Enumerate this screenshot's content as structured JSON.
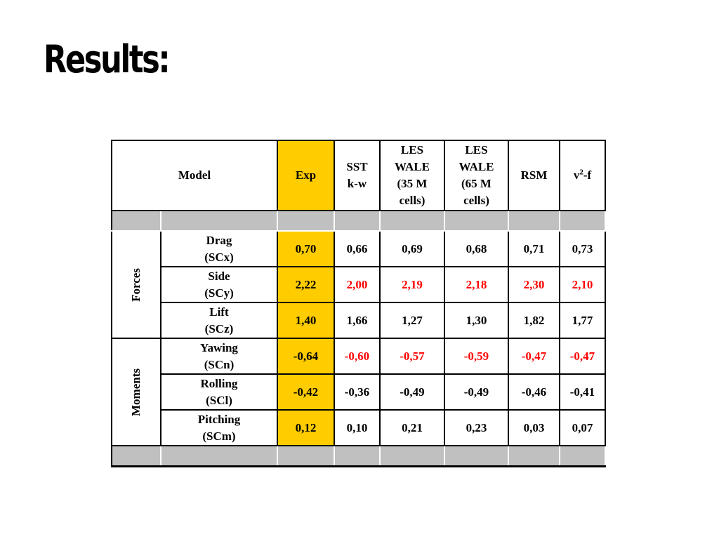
{
  "title": "Results:",
  "table": {
    "model_header": "Model",
    "columns": [
      {
        "lines": [
          "Exp"
        ]
      },
      {
        "lines": [
          "SST",
          "k-w"
        ]
      },
      {
        "lines": [
          "LES",
          "WALE",
          "(35 M",
          "cells)"
        ]
      },
      {
        "lines": [
          "LES",
          "WALE",
          "(65 M",
          "cells)"
        ]
      },
      {
        "lines": [
          "RSM"
        ]
      },
      {
        "v2f_base": "v",
        "v2f_sup": "2",
        "v2f_rest": "-f"
      }
    ],
    "groups": {
      "forces": "Forces",
      "moments": "Moments"
    },
    "rows": [
      {
        "name": "Drag",
        "symbol": "(SCx)",
        "exp": "0,70",
        "sst": "0,66",
        "les35": "0,69",
        "les65": "0,68",
        "rsm": "0,71",
        "v2f": "0,73",
        "highlight": false
      },
      {
        "name": "Side",
        "symbol": "(SCy)",
        "exp": "2,22",
        "sst": "2,00",
        "les35": "2,19",
        "les65": "2,18",
        "rsm": "2,30",
        "v2f": "2,10",
        "highlight": true
      },
      {
        "name": "Lift",
        "symbol": "(SCz)",
        "exp": "1,40",
        "sst": "1,66",
        "les35": "1,27",
        "les65": "1,30",
        "rsm": "1,82",
        "v2f": "1,77",
        "highlight": false
      },
      {
        "name": "Yawing",
        "symbol": "(SCn)",
        "exp": "-0,64",
        "sst": "-0,60",
        "les35": "-0,57",
        "les65": "-0,59",
        "rsm": "-0,47",
        "v2f": "-0,47",
        "highlight": true
      },
      {
        "name": "Rolling",
        "symbol": "(SCl)",
        "exp": "-0,42",
        "sst": "-0,36",
        "les35": "-0,49",
        "les65": "-0,49",
        "rsm": "-0,46",
        "v2f": "-0,41",
        "highlight": false
      },
      {
        "name": "Pitching",
        "symbol": "(SCm)",
        "exp": "0,12",
        "sst": "0,10",
        "les35": "0,21",
        "les65": "0,23",
        "rsm": "0,03",
        "v2f": "0,07",
        "highlight": false
      }
    ],
    "colors": {
      "exp_background": "#ffcc00",
      "separator_background": "#c0c0c0",
      "highlight_text": "#ff0000"
    }
  }
}
